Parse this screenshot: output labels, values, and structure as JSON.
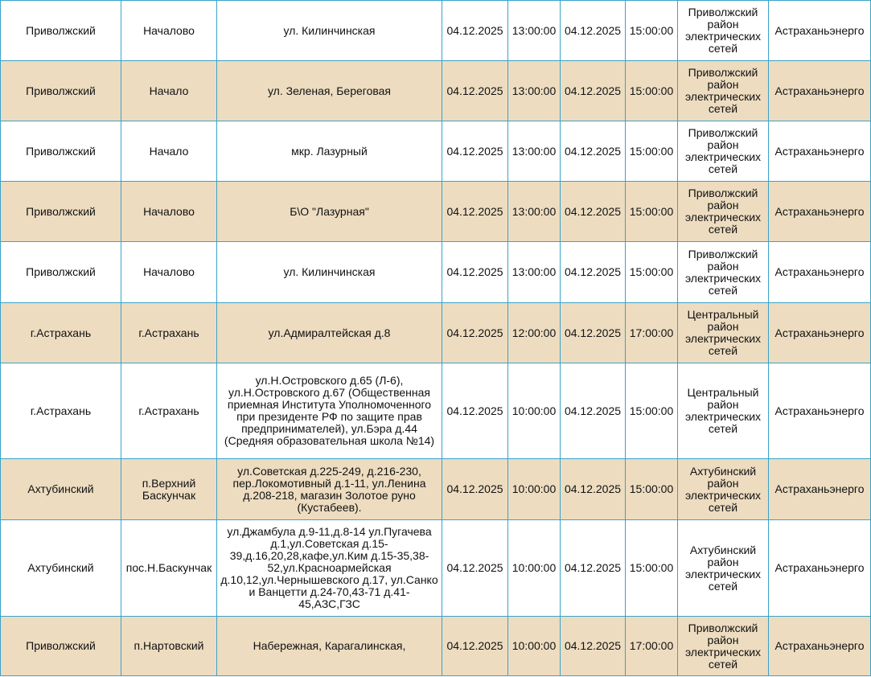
{
  "colors": {
    "border": "#3aa3c8",
    "alt_row": "#eddcc0"
  },
  "rows": [
    [
      "Приволжский",
      "Началово",
      "ул. Килинчинская",
      "04.12.2025",
      "13:00:00",
      "04.12.2025",
      "15:00:00",
      "Приволжский район электрических сетей",
      "Астраханьэнерго"
    ],
    [
      "Приволжский",
      "Начало",
      "ул. Зеленая, Береговая",
      "04.12.2025",
      "13:00:00",
      "04.12.2025",
      "15:00:00",
      "Приволжский район электрических сетей",
      "Астраханьэнерго"
    ],
    [
      "Приволжский",
      "Начало",
      "мкр. Лазурный",
      "04.12.2025",
      "13:00:00",
      "04.12.2025",
      "15:00:00",
      "Приволжский район электрических сетей",
      "Астраханьэнерго"
    ],
    [
      "Приволжский",
      "Началово",
      "Б\\О \"Лазурная\"",
      "04.12.2025",
      "13:00:00",
      "04.12.2025",
      "15:00:00",
      "Приволжский район электрических сетей",
      "Астраханьэнерго"
    ],
    [
      "Приволжский",
      "Началово",
      "ул. Килинчинская",
      "04.12.2025",
      "13:00:00",
      "04.12.2025",
      "15:00:00",
      "Приволжский район электрических сетей",
      "Астраханьэнерго"
    ],
    [
      "г.Астрахань",
      "г.Астрахань",
      "ул.Адмиралтейская д.8",
      "04.12.2025",
      "12:00:00",
      "04.12.2025",
      "17:00:00",
      "Центральный район электрических сетей",
      "Астраханьэнерго"
    ],
    [
      "г.Астрахань",
      "г.Астрахань",
      "ул.Н.Островского д.65 (Л-6), ул.Н.Островского д.67 (Общественная приемная Института Уполномоченного при президенте РФ по защите прав предпринимателей), ул.Бэра д.44 (Средняя образовательная школа №14)",
      "04.12.2025",
      "10:00:00",
      "04.12.2025",
      "15:00:00",
      "Центральный район электрических сетей",
      "Астраханьэнерго"
    ],
    [
      "Ахтубинский",
      "п.Верхний Баскунчак",
      "ул.Советская д.225-249, д.216-230, пер.Локомотивный д.1-11, ул.Ленина д.208-218, магазин Золотое руно (Кустабеев).",
      "04.12.2025",
      "10:00:00",
      "04.12.2025",
      "15:00:00",
      "Ахтубинский район электрических сетей",
      "Астраханьэнерго"
    ],
    [
      "Ахтубинский",
      "пос.Н.Баскунчак",
      "ул.Джамбула д.9-11,д.8-14 ул.Пугачева д.1,ул.Советская д.15-39,д.16,20,28,кафе,ул.Ким д.15-35,38-52,ул.Красноармейская д.10,12,ул.Чернышевского д.17, ул.Санко и Ванцетти д.24-70,43-71 д.41-45,АЗС,ГЗС",
      "04.12.2025",
      "10:00:00",
      "04.12.2025",
      "15:00:00",
      "Ахтубинский район электрических сетей",
      "Астраханьэнерго"
    ],
    [
      "Приволжский",
      "п.Нартовский",
      "Набережная, Карагалинская,",
      "04.12.2025",
      "10:00:00",
      "04.12.2025",
      "17:00:00",
      "Приволжский район электрических сетей",
      "Астраханьэнерго"
    ]
  ]
}
